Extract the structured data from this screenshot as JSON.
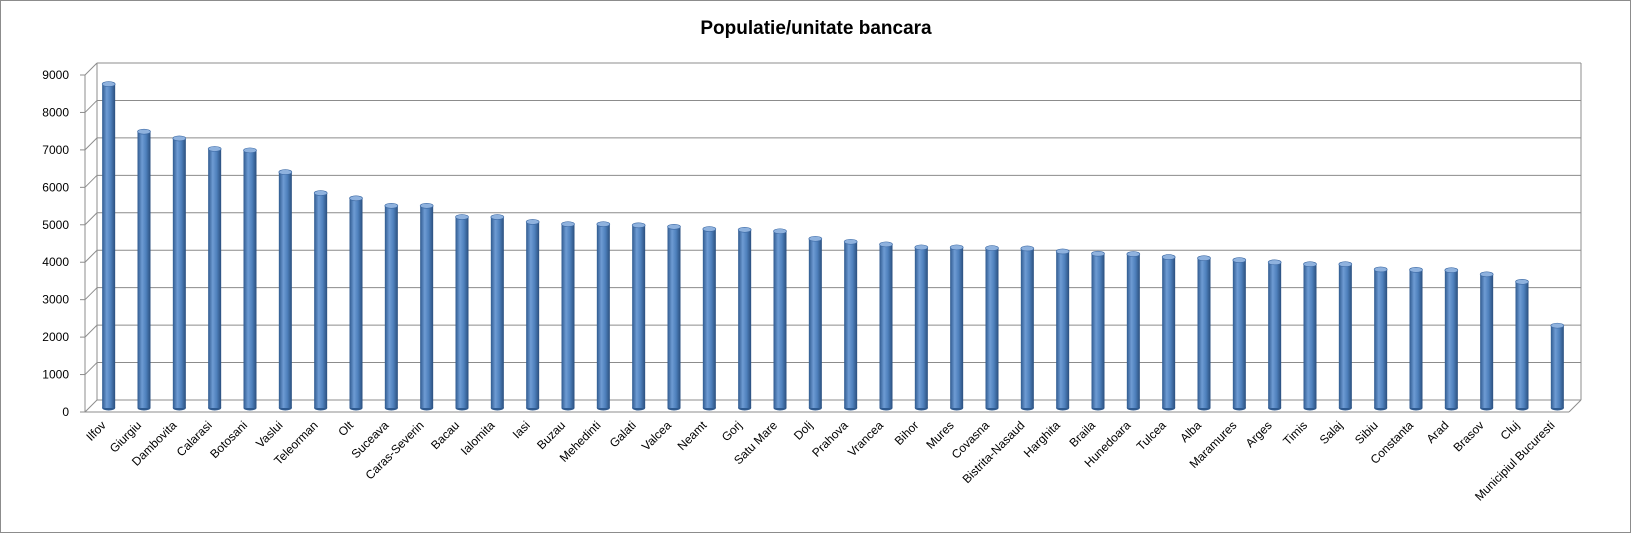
{
  "chart_data": {
    "type": "bar",
    "title": "Populatie/unitate bancara",
    "xlabel": "",
    "ylabel": "",
    "ylim": [
      0,
      9000
    ],
    "yticks": [
      0,
      1000,
      2000,
      3000,
      4000,
      5000,
      6000,
      7000,
      8000,
      9000
    ],
    "grid": true,
    "legend": "none",
    "bar_color": "#4F81BD",
    "categories": [
      "Ilfov",
      "Giurgiu",
      "Dambovita",
      "Calarasi",
      "Botosani",
      "Vaslui",
      "Teleorman",
      "Olt",
      "Suceava",
      "Caras-Severin",
      "Bacau",
      "Ialomita",
      "Iasi",
      "Buzau",
      "Mehedinti",
      "Galati",
      "Valcea",
      "Neamt",
      "Gorj",
      "Satu Mare",
      "Dolj",
      "Prahova",
      "Vrancea",
      "Bihor",
      "Mures",
      "Covasna",
      "Bistrita-Nasaud",
      "Harghita",
      "Braila",
      "Hunedoara",
      "Tulcea",
      "Alba",
      "Maramures",
      "Arges",
      "Timis",
      "Salaj",
      "Sibiu",
      "Constanta",
      "Arad",
      "Brasov",
      "Cluj",
      "Municipiul Bucuresti"
    ],
    "values": [
      8650,
      7380,
      7200,
      6920,
      6880,
      6300,
      5740,
      5600,
      5400,
      5400,
      5100,
      5100,
      4970,
      4910,
      4910,
      4880,
      4840,
      4780,
      4760,
      4720,
      4520,
      4440,
      4370,
      4290,
      4290,
      4270,
      4260,
      4180,
      4120,
      4110,
      4030,
      4000,
      3950,
      3890,
      3840,
      3840,
      3700,
      3690,
      3680,
      3570,
      3370,
      2200
    ]
  }
}
